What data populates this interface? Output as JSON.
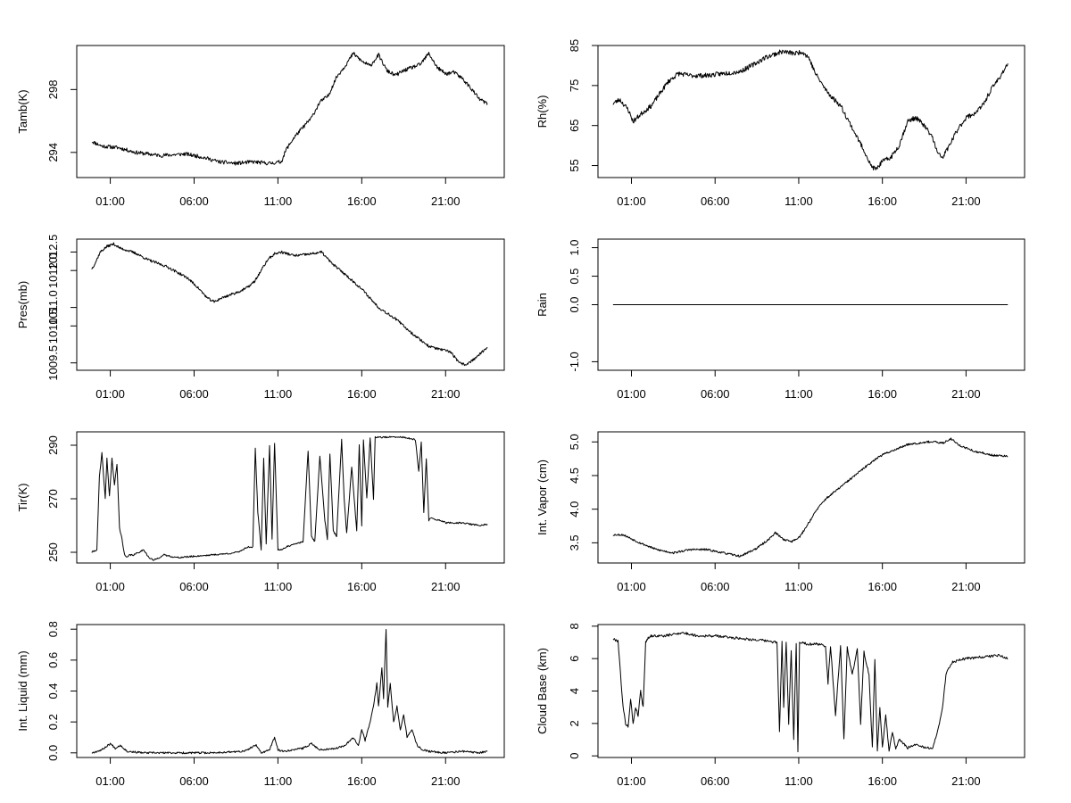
{
  "chart_data": [
    {
      "id": "tamb",
      "type": "line",
      "ylabel": "Tamb(K)",
      "xlim": [
        -1,
        24.5
      ],
      "ylim": [
        292.4,
        300.8
      ],
      "yticks": [
        294,
        298
      ],
      "x_tick_values": [
        1,
        6,
        11,
        16,
        21
      ],
      "x_tick_labels": [
        "01:00",
        "06:00",
        "11:00",
        "16:00",
        "21:00"
      ],
      "noise": 0.12,
      "seed": 11,
      "point_spacing": 0.035,
      "x": [
        -0.1,
        0.5,
        1.5,
        2.5,
        4,
        5.5,
        6.5,
        7.5,
        8.5,
        9.5,
        10.5,
        11.2,
        11.5,
        12,
        12.5,
        13,
        13.5,
        14,
        14.5,
        15,
        15.5,
        16,
        16.5,
        17,
        17.5,
        18,
        18.5,
        19,
        19.5,
        20,
        20.5,
        21,
        21.5,
        22,
        22.5,
        23,
        23.5
      ],
      "y": [
        294.7,
        294.4,
        294.3,
        294.0,
        293.8,
        293.9,
        293.7,
        293.4,
        293.3,
        293.4,
        293.3,
        293.4,
        294.2,
        295.0,
        295.6,
        296.2,
        297.2,
        297.6,
        298.8,
        299.5,
        300.3,
        299.8,
        299.5,
        300.2,
        299.2,
        298.9,
        299.2,
        299.4,
        299.6,
        300.3,
        299.4,
        299.0,
        299.1,
        298.7,
        298.1,
        297.4,
        297.1
      ]
    },
    {
      "id": "rh",
      "type": "line",
      "ylabel": "Rh(%)",
      "xlim": [
        -1,
        24.5
      ],
      "ylim": [
        52,
        85
      ],
      "yticks": [
        55,
        65,
        75,
        85
      ],
      "x_tick_values": [
        1,
        6,
        11,
        16,
        21
      ],
      "x_tick_labels": [
        "01:00",
        "06:00",
        "11:00",
        "16:00",
        "21:00"
      ],
      "noise": 0.6,
      "seed": 23,
      "point_spacing": 0.035,
      "x": [
        -0.1,
        0.3,
        0.8,
        1.1,
        1.6,
        2.2,
        2.7,
        3.2,
        3.8,
        4.5,
        5.5,
        6.5,
        7.5,
        8.2,
        9,
        10,
        10.8,
        11.2,
        11.6,
        12,
        12.6,
        13,
        13.5,
        14,
        14.5,
        15,
        15.3,
        15.6,
        16,
        16.5,
        17,
        17.5,
        18,
        18.5,
        19,
        19.3,
        19.6,
        20,
        20.5,
        21,
        21.5,
        22,
        22.5,
        23,
        23.5
      ],
      "y": [
        70.5,
        71.5,
        69,
        66,
        68,
        70,
        73,
        76,
        78,
        77.5,
        77.5,
        78,
        78.5,
        80,
        82,
        83.5,
        83,
        83.5,
        82,
        78,
        74,
        72,
        70,
        66,
        62,
        58,
        55,
        54,
        56,
        57,
        60,
        66,
        67,
        65,
        62,
        58,
        57,
        60,
        64,
        67,
        68,
        70,
        74,
        77,
        80.5
      ]
    },
    {
      "id": "pres",
      "type": "line",
      "ylabel": "Pres(mb)",
      "xlim": [
        -1,
        24.5
      ],
      "ylim": [
        1009.3,
        1012.85
      ],
      "yticks": [
        1009.5,
        1010.5,
        1011.0,
        1012.0,
        1012.5
      ],
      "x_tick_values": [
        1,
        6,
        11,
        16,
        21
      ],
      "x_tick_labels": [
        "01:00",
        "06:00",
        "11:00",
        "16:00",
        "21:00"
      ],
      "noise": 0.035,
      "seed": 37,
      "point_spacing": 0.035,
      "x": [
        -0.1,
        0.1,
        0.4,
        0.8,
        1.2,
        1.6,
        2.0,
        2.6,
        3.2,
        3.8,
        4.4,
        5.0,
        5.6,
        6.2,
        6.8,
        7.2,
        7.6,
        8.2,
        8.8,
        9.2,
        9.6,
        10.0,
        10.4,
        10.8,
        11.2,
        12.0,
        13.0,
        13.6,
        14.2,
        15.0,
        16.0,
        17.0,
        18.0,
        19.0,
        20.0,
        20.8,
        21.3,
        21.8,
        22.2,
        22.7,
        23.2,
        23.5
      ],
      "y": [
        1012.05,
        1012.2,
        1012.5,
        1012.65,
        1012.72,
        1012.6,
        1012.55,
        1012.45,
        1012.3,
        1012.2,
        1012.1,
        1011.95,
        1011.8,
        1011.55,
        1011.25,
        1011.15,
        1011.25,
        1011.35,
        1011.45,
        1011.55,
        1011.7,
        1012.0,
        1012.3,
        1012.45,
        1012.5,
        1012.4,
        1012.45,
        1012.5,
        1012.2,
        1011.9,
        1011.5,
        1011.0,
        1010.7,
        1010.3,
        1009.95,
        1009.85,
        1009.8,
        1009.5,
        1009.45,
        1009.6,
        1009.8,
        1009.9
      ]
    },
    {
      "id": "rain",
      "type": "line",
      "ylabel": "Rain",
      "xlim": [
        -1,
        24.5
      ],
      "ylim": [
        -1.15,
        1.15
      ],
      "yticks": [
        -1.0,
        0.0,
        0.5,
        1.0
      ],
      "x_tick_values": [
        1,
        6,
        11,
        16,
        21
      ],
      "x_tick_labels": [
        "01:00",
        "06:00",
        "11:00",
        "16:00",
        "21:00"
      ],
      "noise": 0,
      "seed": 1,
      "point_spacing": 0.5,
      "x": [
        -0.1,
        23.5
      ],
      "y": [
        0.0,
        0.0
      ]
    },
    {
      "id": "tir",
      "type": "line",
      "ylabel": "Tir(K)",
      "xlim": [
        -1,
        24.5
      ],
      "ylim": [
        246,
        295
      ],
      "yticks": [
        250,
        270,
        290
      ],
      "x_tick_values": [
        1,
        6,
        11,
        16,
        21
      ],
      "x_tick_labels": [
        "01:00",
        "06:00",
        "11:00",
        "16:00",
        "21:00"
      ],
      "noise": 0.3,
      "seed": 41,
      "point_spacing": 0.04,
      "x": [
        -0.1,
        0.2,
        0.35,
        0.5,
        0.7,
        0.8,
        0.95,
        1.1,
        1.25,
        1.4,
        1.55,
        1.7,
        1.85,
        2.0,
        2.15,
        2.4,
        3.0,
        3.3,
        3.6,
        4.2,
        5.0,
        6.0,
        7.0,
        8.0,
        8.6,
        9.2,
        9.5,
        9.65,
        9.8,
        10.0,
        10.15,
        10.3,
        10.5,
        10.65,
        10.8,
        11.0,
        11.2,
        11.5,
        12.0,
        12.5,
        12.8,
        13.0,
        13.2,
        13.5,
        13.8,
        13.95,
        14.1,
        14.3,
        14.5,
        14.8,
        14.95,
        15.1,
        15.4,
        15.7,
        15.85,
        16.0,
        16.1,
        16.3,
        16.5,
        16.7,
        16.8,
        17.0,
        17.5,
        18.5,
        19.2,
        19.4,
        19.55,
        19.7,
        19.85,
        20.0,
        20.2,
        20.4,
        20.7,
        21.0,
        22.0,
        23.0,
        23.5
      ],
      "y": [
        250,
        251,
        278,
        287,
        270,
        285,
        271,
        285,
        275,
        283,
        259,
        255,
        249,
        248,
        249,
        249,
        251,
        248,
        247,
        249,
        248,
        248.5,
        249,
        249.5,
        250,
        252,
        252,
        289,
        265,
        251,
        285,
        253,
        290,
        255,
        291,
        251,
        251,
        252,
        253,
        254,
        288,
        256,
        254,
        286,
        262,
        255,
        287,
        258,
        256,
        292,
        270,
        257,
        282,
        258,
        290,
        260,
        292,
        270,
        293,
        270,
        293,
        293,
        293,
        293,
        292,
        280,
        291,
        265,
        285,
        262,
        263,
        262,
        262,
        261,
        261,
        260,
        260.5
      ]
    },
    {
      "id": "intvapor",
      "type": "line",
      "ylabel": "Int. Vapor (cm)",
      "xlim": [
        -1,
        24.5
      ],
      "ylim": [
        3.2,
        5.15
      ],
      "yticks": [
        3.5,
        4.0,
        4.5,
        5.0
      ],
      "x_tick_values": [
        1,
        6,
        11,
        16,
        21
      ],
      "x_tick_labels": [
        "01:00",
        "06:00",
        "11:00",
        "16:00",
        "21:00"
      ],
      "noise": 0.015,
      "seed": 53,
      "point_spacing": 0.035,
      "x": [
        -0.1,
        0.5,
        1.5,
        2.5,
        3.5,
        4.5,
        5.5,
        6.5,
        7.5,
        8.5,
        9.2,
        9.6,
        10.1,
        10.6,
        11.1,
        11.6,
        12.1,
        12.6,
        13.1,
        13.6,
        14.1,
        14.6,
        15.1,
        15.6,
        16.1,
        16.6,
        17.1,
        17.6,
        18.1,
        18.6,
        19.1,
        19.6,
        20.1,
        20.6,
        21.1,
        21.6,
        22.1,
        22.6,
        23.1,
        23.5
      ],
      "y": [
        3.62,
        3.62,
        3.5,
        3.4,
        3.35,
        3.4,
        3.4,
        3.35,
        3.3,
        3.42,
        3.55,
        3.65,
        3.55,
        3.52,
        3.6,
        3.8,
        4.0,
        4.15,
        4.25,
        4.35,
        4.45,
        4.55,
        4.65,
        4.75,
        4.82,
        4.87,
        4.92,
        4.97,
        4.98,
        5.0,
        5.0,
        4.98,
        5.05,
        4.95,
        4.9,
        4.85,
        4.83,
        4.8,
        4.8,
        4.78
      ]
    },
    {
      "id": "intliquid",
      "type": "line",
      "ylabel": "Int. Liquid (mm)",
      "xlim": [
        -1,
        24.5
      ],
      "ylim": [
        -0.03,
        0.83
      ],
      "yticks": [
        0.0,
        0.2,
        0.4,
        0.6,
        0.8
      ],
      "x_tick_values": [
        1,
        6,
        11,
        16,
        21
      ],
      "x_tick_labels": [
        "01:00",
        "06:00",
        "11:00",
        "16:00",
        "21:00"
      ],
      "noise": 0.006,
      "seed": 67,
      "point_spacing": 0.04,
      "x": [
        -0.1,
        0.5,
        1.0,
        1.3,
        1.6,
        2.0,
        3.0,
        5.0,
        7.0,
        9.0,
        9.7,
        10.0,
        10.5,
        10.8,
        11.0,
        11.3,
        12.5,
        13.0,
        13.5,
        14.5,
        15.0,
        15.5,
        15.8,
        16.0,
        16.2,
        16.5,
        16.7,
        16.9,
        17.0,
        17.2,
        17.3,
        17.45,
        17.55,
        17.7,
        17.9,
        18.1,
        18.3,
        18.5,
        18.7,
        19.0,
        19.3,
        19.6,
        20.0,
        21.0,
        22.0,
        23.0,
        23.5
      ],
      "y": [
        0.0,
        0.02,
        0.06,
        0.03,
        0.05,
        0.01,
        0.0,
        0.0,
        0.0,
        0.01,
        0.05,
        0.0,
        0.02,
        0.1,
        0.02,
        0.01,
        0.03,
        0.06,
        0.02,
        0.03,
        0.05,
        0.1,
        0.05,
        0.15,
        0.08,
        0.2,
        0.3,
        0.45,
        0.3,
        0.55,
        0.35,
        0.8,
        0.3,
        0.45,
        0.2,
        0.3,
        0.15,
        0.25,
        0.1,
        0.15,
        0.05,
        0.02,
        0.01,
        0.0,
        0.01,
        0.0,
        0.01
      ]
    },
    {
      "id": "cloudbase",
      "type": "line",
      "ylabel": "Cloud Base (km)",
      "xlim": [
        -1,
        24.5
      ],
      "ylim": [
        -0.1,
        8.1
      ],
      "yticks": [
        0,
        2,
        4,
        6,
        8
      ],
      "x_tick_values": [
        1,
        6,
        11,
        16,
        21
      ],
      "x_tick_labels": [
        "01:00",
        "06:00",
        "11:00",
        "16:00",
        "21:00"
      ],
      "noise": 0.08,
      "seed": 79,
      "point_spacing": 0.04,
      "x": [
        -0.1,
        0.2,
        0.35,
        0.5,
        0.65,
        0.8,
        0.95,
        1.1,
        1.25,
        1.4,
        1.55,
        1.7,
        1.85,
        2.0,
        2.2,
        3.0,
        4.0,
        5.0,
        6.0,
        7.0,
        8.0,
        9.0,
        9.7,
        9.85,
        10.0,
        10.1,
        10.25,
        10.4,
        10.55,
        10.7,
        10.85,
        10.95,
        11.05,
        11.2,
        11.5,
        12.0,
        12.6,
        12.75,
        12.9,
        13.2,
        13.5,
        13.7,
        13.9,
        14.2,
        14.5,
        14.7,
        14.9,
        15.2,
        15.4,
        15.55,
        15.7,
        15.85,
        16.0,
        16.2,
        16.4,
        16.6,
        16.8,
        17.0,
        17.5,
        18.0,
        18.5,
        19.0,
        19.3,
        19.6,
        19.8,
        20.0,
        20.2,
        21.0,
        22.0,
        23.0,
        23.5
      ],
      "y": [
        7.2,
        7.1,
        5.0,
        3.0,
        2.0,
        1.8,
        3.5,
        2.0,
        3.0,
        2.5,
        4.0,
        3.0,
        7.0,
        7.3,
        7.4,
        7.4,
        7.6,
        7.4,
        7.4,
        7.3,
        7.2,
        7.1,
        7.0,
        1.5,
        7.0,
        3.0,
        7.0,
        2.0,
        6.5,
        1.0,
        7.0,
        0.2,
        7.0,
        7.0,
        6.9,
        6.9,
        6.8,
        4.5,
        6.8,
        2.5,
        6.8,
        1.0,
        6.7,
        5.0,
        6.6,
        2.0,
        6.4,
        5.0,
        0.5,
        6.0,
        0.3,
        3.0,
        0.5,
        2.5,
        0.3,
        1.5,
        0.4,
        1.0,
        0.5,
        0.7,
        0.5,
        0.5,
        1.5,
        3.0,
        5.0,
        5.5,
        5.8,
        6.0,
        6.1,
        6.2,
        6.0
      ]
    }
  ]
}
